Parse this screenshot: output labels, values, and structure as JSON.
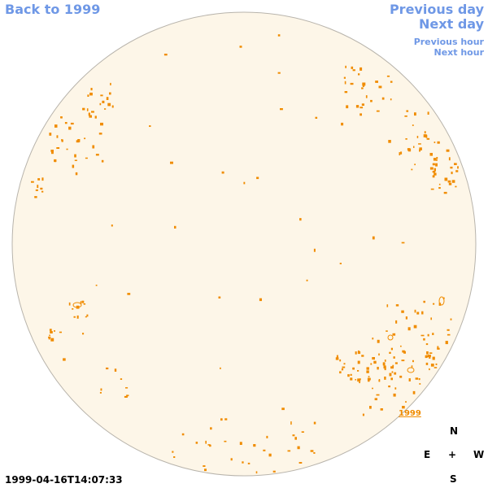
{
  "nav": {
    "back": "Back to 1999",
    "previous_day": "Previous day",
    "next_day": "Next day",
    "previous_hour": "Previous hour",
    "next_hour": "Next hour"
  },
  "year_link": "1999",
  "compass": {
    "n": "N",
    "e": "E",
    "center": "+",
    "w": "W",
    "s": "S"
  },
  "timestamp": "1999-04-16T14:07:33",
  "colors": {
    "nav": "#6f98e6",
    "disk_fill": "#fdf6e8",
    "disk_edge": "#b8b4ac",
    "contour": "#f08c00"
  },
  "icons": {
    "center_marker": "plus-icon"
  }
}
